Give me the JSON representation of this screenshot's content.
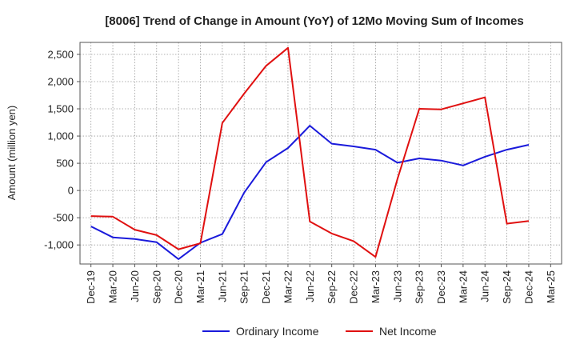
{
  "chart_data": {
    "type": "line",
    "title": "[8006]  Trend of Change in Amount (YoY) of 12Mo Moving Sum of Incomes",
    "xlabel": "",
    "ylabel": "Amount (million yen)",
    "categories": [
      "Dec-19",
      "Mar-20",
      "Jun-20",
      "Sep-20",
      "Dec-20",
      "Mar-21",
      "Jun-21",
      "Sep-21",
      "Dec-21",
      "Mar-22",
      "Jun-22",
      "Sep-22",
      "Dec-22",
      "Mar-23",
      "Jun-23",
      "Sep-23",
      "Dec-23",
      "Mar-24",
      "Jun-24",
      "Sep-24",
      "Dec-24",
      "Mar-25"
    ],
    "y_ticks": [
      2500,
      2000,
      1500,
      1000,
      500,
      0,
      -500,
      -1000
    ],
    "y_tick_labels": [
      "2,500",
      "2,000",
      "1,500",
      "1,000",
      "500",
      "0",
      "-500",
      "-1,000"
    ],
    "ylim": [
      -1350,
      2720
    ],
    "grid": true,
    "legend_position": "bottom",
    "series": [
      {
        "name": "Ordinary Income",
        "color": "#1a1adb",
        "values": [
          -660,
          -860,
          -890,
          -950,
          -1260,
          -960,
          -800,
          -40,
          520,
          780,
          1190,
          860,
          810,
          750,
          510,
          590,
          550,
          460,
          620,
          750,
          840,
          null
        ]
      },
      {
        "name": "Net Income",
        "color": "#e01010",
        "values": [
          -470,
          -480,
          -720,
          -820,
          -1080,
          -970,
          1240,
          1780,
          2290,
          2620,
          -570,
          -790,
          -930,
          -1220,
          210,
          1500,
          1490,
          1600,
          1710,
          -610,
          -560,
          null
        ]
      }
    ]
  }
}
